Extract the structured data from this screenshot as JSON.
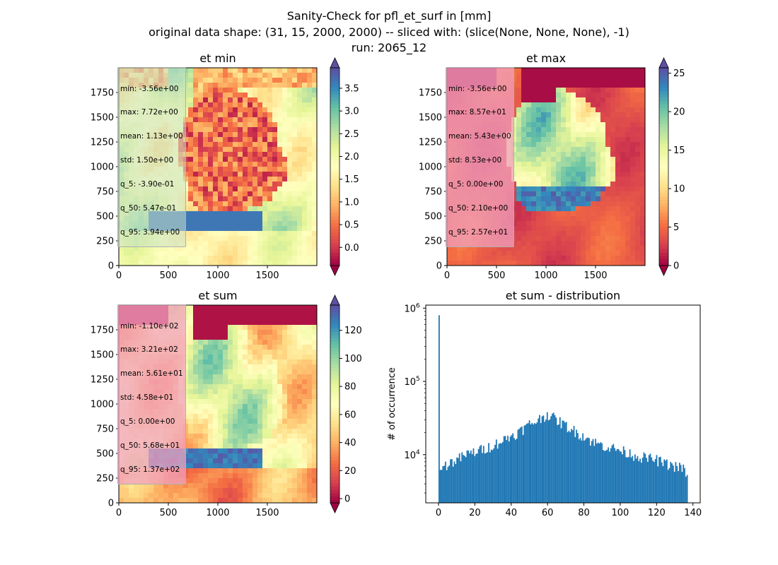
{
  "figure": {
    "title_line1": "Sanity-Check for pfl_et_surf in [mm]",
    "title_line2": "original data shape: (31, 15, 2000, 2000) -- sliced with: (slice(None, None, None), -1)",
    "title_line3": "run: 2065_12"
  },
  "colormap": "Spectral",
  "chart_data": [
    {
      "type": "heatmap",
      "title": "et min",
      "xlim": [
        0,
        2000
      ],
      "ylim": [
        0,
        2000
      ],
      "xticks": [
        0,
        500,
        1000,
        1500
      ],
      "yticks": [
        0,
        250,
        500,
        750,
        1000,
        1250,
        1500,
        1750
      ],
      "colorbar": {
        "vmin": -0.4,
        "vmax": 3.95,
        "ticks": [
          0.0,
          0.5,
          1.0,
          1.5,
          2.0,
          2.5,
          3.0,
          3.5
        ],
        "tick_labels": [
          "0.0",
          "0.5",
          "1.0",
          "1.5",
          "2.0",
          "2.5",
          "3.0",
          "3.5"
        ]
      },
      "stats": [
        "min: -3.56e+00",
        "max: 7.72e+00",
        "mean: 1.13e+00",
        "std: 1.50e+00",
        "q_5: -3.90e-01",
        "q_50: 5.47e-01",
        "q_95: 3.94e+00"
      ]
    },
    {
      "type": "heatmap",
      "title": "et max",
      "xlim": [
        0,
        2000
      ],
      "ylim": [
        0,
        2000
      ],
      "xticks": [
        0,
        500,
        1000,
        1500
      ],
      "yticks": [
        0,
        250,
        500,
        750,
        1000,
        1250,
        1500,
        1750
      ],
      "colorbar": {
        "vmin": 0,
        "vmax": 25.7,
        "ticks": [
          0,
          5,
          10,
          15,
          20,
          25
        ],
        "tick_labels": [
          "0",
          "5",
          "10",
          "15",
          "20",
          "25"
        ]
      },
      "stats": [
        "min: -3.56e+00",
        "max: 8.57e+01",
        "mean: 5.43e+00",
        "std: 8.53e+00",
        "q_5: 0.00e+00",
        "q_50: 2.10e+00",
        "q_95: 2.57e+01"
      ]
    },
    {
      "type": "heatmap",
      "title": "et sum",
      "xlim": [
        0,
        2000
      ],
      "ylim": [
        0,
        2000
      ],
      "xticks": [
        0,
        500,
        1000,
        1500
      ],
      "yticks": [
        0,
        250,
        500,
        750,
        1000,
        1250,
        1500,
        1750
      ],
      "colorbar": {
        "vmin": -3,
        "vmax": 138,
        "ticks": [
          0,
          20,
          40,
          60,
          80,
          100,
          120
        ],
        "tick_labels": [
          "0",
          "20",
          "40",
          "60",
          "80",
          "100",
          "120"
        ]
      },
      "stats": [
        "min: -1.10e+02",
        "max: 3.21e+02",
        "mean: 5.61e+01",
        "std: 4.58e+01",
        "q_5: 0.00e+00",
        "q_50: 5.68e+01",
        "q_95: 1.37e+02"
      ]
    },
    {
      "type": "bar",
      "title": "et sum - distribution",
      "ylabel": "# of occurrence",
      "yscale": "log",
      "xlim": [
        -7,
        144
      ],
      "ylim": [
        2200,
        1100000
      ],
      "xticks": [
        0,
        20,
        40,
        60,
        80,
        100,
        120,
        140
      ],
      "yticks": [
        10000,
        100000,
        1000000
      ],
      "ytick_labels": [
        {
          "base": "10",
          "exp": "4"
        },
        {
          "base": "10",
          "exp": "5"
        },
        {
          "base": "10",
          "exp": "6"
        }
      ],
      "bar_color": "#1f77b4",
      "bin_width": 0.7,
      "spike": {
        "x": 0,
        "count": 800000
      },
      "series": [
        {
          "values": [
            [
              0,
              6000
            ],
            [
              5,
              7500
            ],
            [
              10,
              8500
            ],
            [
              15,
              10000
            ],
            [
              20,
              11000
            ],
            [
              25,
              12000
            ],
            [
              30,
              13500
            ],
            [
              35,
              15500
            ],
            [
              40,
              18000
            ],
            [
              45,
              21000
            ],
            [
              50,
              26000
            ],
            [
              55,
              30000
            ],
            [
              60,
              36000
            ],
            [
              65,
              30000
            ],
            [
              70,
              25000
            ],
            [
              75,
              21000
            ],
            [
              80,
              18000
            ],
            [
              85,
              15000
            ],
            [
              90,
              13500
            ],
            [
              95,
              12500
            ],
            [
              100,
              11500
            ],
            [
              105,
              10500
            ],
            [
              110,
              9500
            ],
            [
              115,
              9000
            ],
            [
              120,
              8500
            ],
            [
              125,
              7500
            ],
            [
              130,
              7000
            ],
            [
              135,
              6500
            ],
            [
              137,
              4500
            ]
          ]
        }
      ]
    }
  ]
}
